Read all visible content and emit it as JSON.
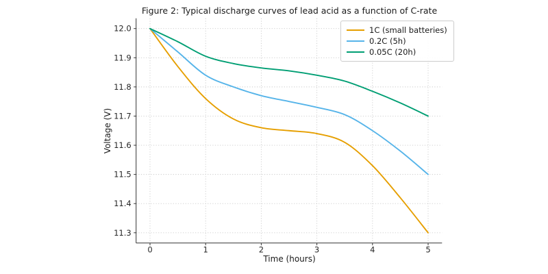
{
  "chart_data": {
    "type": "line",
    "title": "Figure 2: Typical discharge curves of lead acid as a function of C-rate",
    "xlabel": "Time (hours)",
    "ylabel": "Voltage (V)",
    "xlim": [
      -0.25,
      5.25
    ],
    "ylim": [
      11.265,
      12.035
    ],
    "xticks": [
      0,
      1,
      2,
      3,
      4,
      5
    ],
    "yticks": [
      11.3,
      11.4,
      11.5,
      11.6,
      11.7,
      11.8,
      11.9,
      12.0
    ],
    "grid": true,
    "grid_style": "dotted",
    "legend_position": "upper right",
    "x": [
      0,
      0.5,
      1,
      1.5,
      2,
      2.5,
      3,
      3.5,
      4,
      4.5,
      5
    ],
    "series": [
      {
        "name": "1C (small batteries)",
        "color": "#E69F00",
        "values": [
          12.0,
          11.87,
          11.76,
          11.69,
          11.66,
          11.65,
          11.64,
          11.61,
          11.53,
          11.42,
          11.3
        ]
      },
      {
        "name": "0.2C (5h)",
        "color": "#56B4E9",
        "values": [
          12.0,
          11.92,
          11.84,
          11.8,
          11.77,
          11.75,
          11.73,
          11.705,
          11.65,
          11.58,
          11.5
        ]
      },
      {
        "name": "0.05C (20h)",
        "color": "#009E73",
        "values": [
          12.0,
          11.955,
          11.905,
          11.88,
          11.865,
          11.855,
          11.84,
          11.82,
          11.785,
          11.745,
          11.7
        ]
      }
    ]
  },
  "colors": {
    "background": "#ffffff",
    "grid": "#c9c9c9",
    "axis": "#333333",
    "tick_text": "#262626",
    "legend_border": "#cccccc"
  }
}
